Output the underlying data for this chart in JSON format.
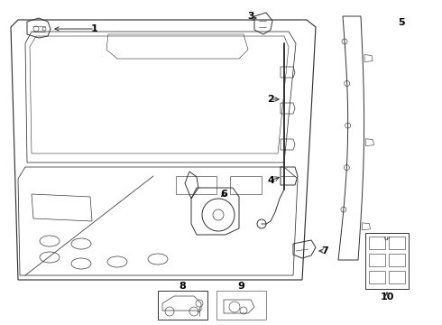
{
  "bg_color": "#ffffff",
  "line_color": "#333333",
  "lw": 0.7,
  "fig_w": 4.9,
  "fig_h": 3.6,
  "dpi": 100
}
